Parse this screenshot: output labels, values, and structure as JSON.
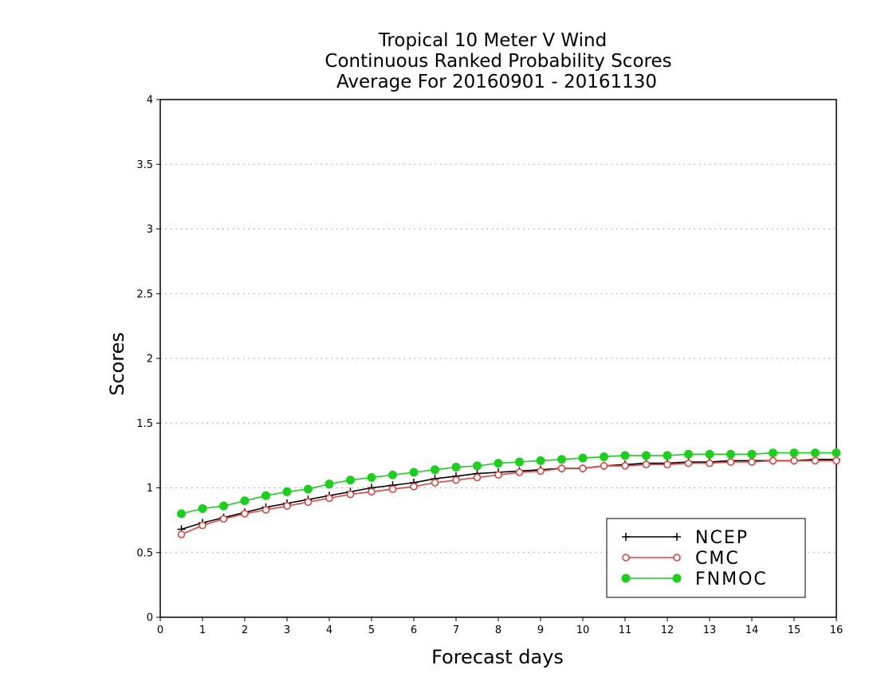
{
  "chart_data": {
    "type": "line",
    "title": [
      "Tropical 10 Meter V Wind",
      "Continuous Ranked Probability Scores",
      "Average For 20160901 - 20161130"
    ],
    "xlabel": "Forecast days",
    "ylabel": "Scores",
    "xlim": [
      0,
      16
    ],
    "ylim": [
      0,
      4
    ],
    "xticks": [
      0,
      1,
      2,
      3,
      4,
      5,
      6,
      7,
      8,
      9,
      10,
      11,
      12,
      13,
      14,
      15,
      16
    ],
    "yticks": [
      0,
      0.5,
      1,
      1.5,
      2,
      2.5,
      3,
      3.5,
      4
    ],
    "ytick_labels": [
      "0",
      "0.5",
      "1",
      "1.5",
      "2",
      "2.5",
      "3",
      "3.5",
      "4"
    ],
    "grid": "horizontal dotted",
    "legend_position": "bottom-right",
    "x": [
      0.5,
      1,
      1.5,
      2,
      2.5,
      3,
      3.5,
      4,
      4.5,
      5,
      5.5,
      6,
      6.5,
      7,
      7.5,
      8,
      8.5,
      9,
      9.5,
      10,
      10.5,
      11,
      11.5,
      12,
      12.5,
      13,
      13.5,
      14,
      14.5,
      15,
      15.5,
      16
    ],
    "series": [
      {
        "name": "NCEP",
        "color": "#000000",
        "marker": "plus",
        "values": [
          0.68,
          0.73,
          0.77,
          0.81,
          0.85,
          0.88,
          0.91,
          0.94,
          0.97,
          1.0,
          1.02,
          1.04,
          1.07,
          1.09,
          1.11,
          1.12,
          1.13,
          1.14,
          1.15,
          1.15,
          1.17,
          1.18,
          1.19,
          1.19,
          1.2,
          1.2,
          1.21,
          1.21,
          1.21,
          1.21,
          1.22,
          1.22
        ]
      },
      {
        "name": "CMC",
        "color": "#e8403a",
        "marker": "open-circle",
        "values": [
          0.64,
          0.71,
          0.76,
          0.8,
          0.83,
          0.86,
          0.89,
          0.92,
          0.95,
          0.97,
          0.99,
          1.01,
          1.04,
          1.06,
          1.08,
          1.1,
          1.12,
          1.13,
          1.15,
          1.15,
          1.17,
          1.17,
          1.18,
          1.18,
          1.19,
          1.19,
          1.2,
          1.2,
          1.21,
          1.21,
          1.21,
          1.21
        ]
      },
      {
        "name": "FNMOC",
        "color": "#19d119",
        "marker": "filled-circle",
        "values": [
          0.8,
          0.84,
          0.86,
          0.9,
          0.94,
          0.97,
          0.99,
          1.03,
          1.06,
          1.08,
          1.1,
          1.12,
          1.14,
          1.16,
          1.17,
          1.19,
          1.2,
          1.21,
          1.22,
          1.23,
          1.24,
          1.25,
          1.25,
          1.25,
          1.26,
          1.26,
          1.26,
          1.26,
          1.27,
          1.27,
          1.27,
          1.27
        ]
      }
    ]
  }
}
